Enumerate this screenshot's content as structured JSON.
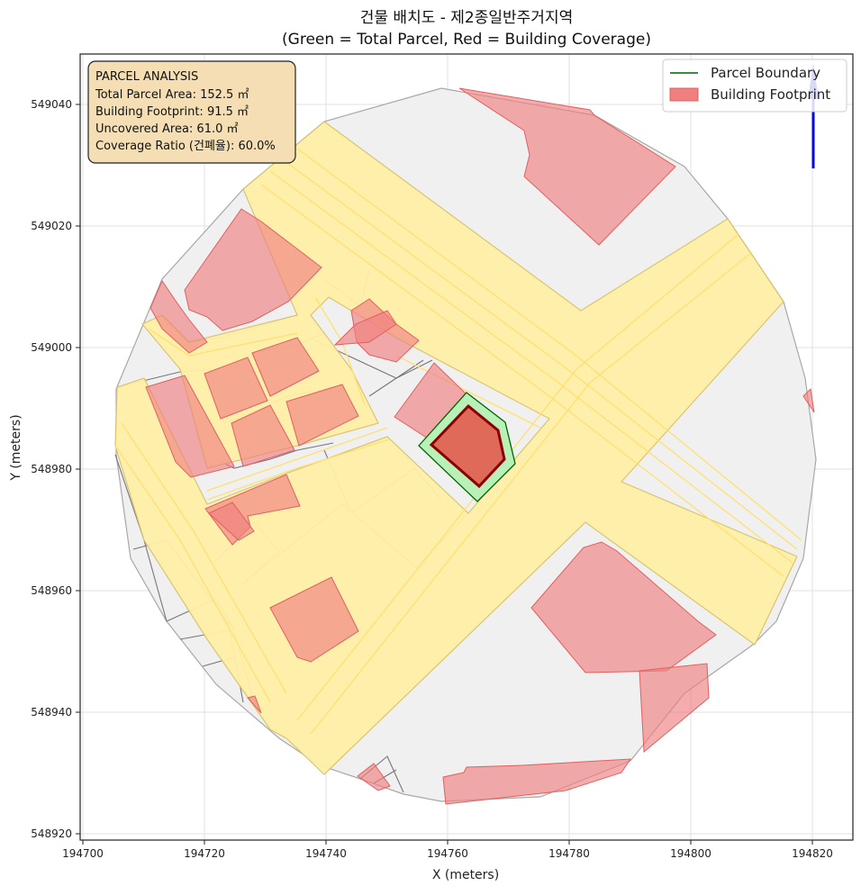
{
  "title": {
    "line1": "건물 배치도 - 제2종일반주거지역",
    "line2": "(Green = Total Parcel, Red = Building Coverage)"
  },
  "axes": {
    "xlabel": "X (meters)",
    "ylabel": "Y (meters)",
    "xlim": [
      194700,
      194827
    ],
    "ylim": [
      548919,
      549048
    ],
    "xticks": [
      "194700",
      "194720",
      "194740",
      "194760",
      "194780",
      "194800",
      "194820"
    ],
    "yticks": [
      "548920",
      "548940",
      "548960",
      "548980",
      "549000",
      "549020",
      "549040"
    ],
    "grid": true
  },
  "info_box": {
    "heading": "PARCEL ANALYSIS",
    "line1": "Total Parcel Area: 152.5 ㎡",
    "line2": "Building Footprint: 91.5 ㎡",
    "line3": "Uncovered Area: 61.0 ㎡",
    "line4": "Coverage Ratio (건폐율): 60.0%"
  },
  "legend": {
    "placement": "top-right",
    "parcel_label": "Parcel Boundary",
    "building_label": "Building Footprint"
  },
  "colors": {
    "road": "#fff0a8",
    "road_edge": "#e8d060",
    "parcel_bg": "#f0f0f0",
    "building": "#f08080",
    "target_parcel": "#b8f0b8",
    "target_building": "#e06a5a",
    "north_arrow": "#0000dd"
  },
  "north_arrow_icon": "north-arrow-icon"
}
